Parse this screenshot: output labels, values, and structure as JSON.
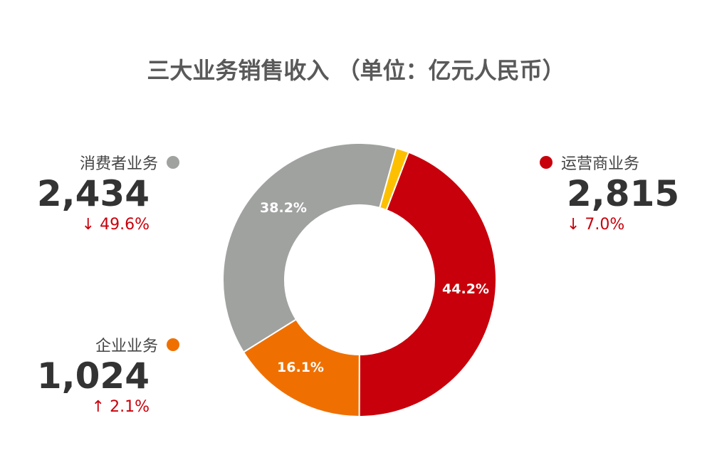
{
  "title": "三大业务销售收入 （单位：亿元人民币）",
  "chart_data": {
    "type": "pie",
    "title": "三大业务销售收入 （单位：亿元人民币）",
    "slices": [
      {
        "name": "运营商业务",
        "percent": 44.2,
        "value": 2815,
        "color": "#c8000b"
      },
      {
        "name": "企业业务",
        "percent": 16.1,
        "value": 1024,
        "color": "#ef7000"
      },
      {
        "name": "消费者业务",
        "percent": 38.2,
        "value": 2434,
        "color": "#a0a2a0"
      },
      {
        "name": "",
        "percent": 1.5,
        "value": null,
        "color": "#fdc000"
      }
    ]
  },
  "legend": {
    "consumer": {
      "name": "消费者业务",
      "value": "2,434",
      "change": "↓ 49.6%",
      "color": "#a0a2a0"
    },
    "enterprise": {
      "name": "企业业务",
      "value": "1,024",
      "change": "↑ 2.1%",
      "color": "#ef7000"
    },
    "carrier": {
      "name": "运营商业务",
      "value": "2,815",
      "change": "↓ 7.0%",
      "color": "#c8000b"
    }
  },
  "slice_labels": {
    "carrier": "44.2%",
    "enterprise": "16.1%",
    "consumer": "38.2%"
  }
}
